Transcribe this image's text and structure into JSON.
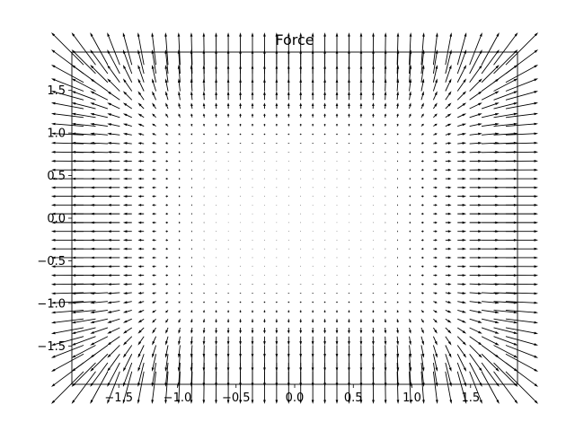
{
  "chart_data": {
    "type": "quiver",
    "title": "Force",
    "xlabel": "",
    "ylabel": "",
    "xlim": [
      -1.9,
      1.9
    ],
    "ylim": [
      -1.95,
      1.95
    ],
    "xticks": [
      -1.5,
      -1.0,
      -0.5,
      0.0,
      0.5,
      1.0,
      1.5
    ],
    "yticks": [
      -1.5,
      -1.0,
      -0.5,
      0.0,
      0.5,
      1.0,
      1.5
    ],
    "xtick_labels": [
      "−1.5",
      "−1.0",
      "−0.5",
      "0.0",
      "0.5",
      "1.0",
      "1.5"
    ],
    "ytick_labels": [
      "−1.5",
      "−1.0",
      "−0.5",
      "0.0",
      "0.5",
      "1.0",
      "1.5"
    ],
    "grid": false,
    "field": {
      "x_range": [
        -1.8,
        1.8
      ],
      "y_range": [
        -1.8,
        1.8
      ],
      "x_count": 36,
      "y_count": 36,
      "u": "x^5",
      "v": "y^5",
      "arrow_color": "#000000"
    }
  }
}
